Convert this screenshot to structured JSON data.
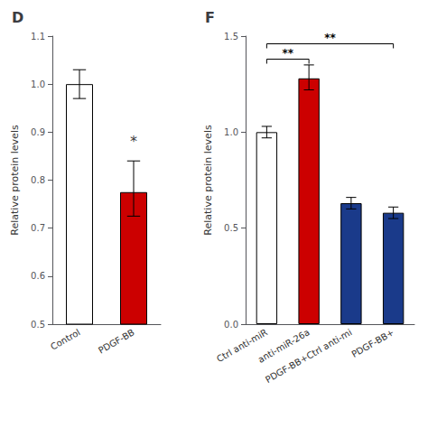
{
  "chart_data": [
    {
      "type": "bar",
      "title": "D",
      "categories": [
        "Control",
        "PDGF-BB"
      ],
      "values": [
        1.0,
        0.775
      ],
      "errors_low": [
        0.03,
        0.05
      ],
      "errors_high": [
        0.03,
        0.065
      ],
      "colors": [
        "white",
        "#cc0000"
      ],
      "ylabel": "Relative protein levels",
      "ylim": [
        0.5,
        1.1
      ],
      "yticks": [
        0.5,
        0.6,
        0.7,
        0.8,
        0.9,
        {
          "value": 1.0,
          "label": "1.0"
        },
        1.1
      ],
      "grid": false,
      "annotations": [
        {
          "text": "*",
          "x": "PDGF-BB",
          "y": 0.865
        }
      ]
    },
    {
      "type": "bar",
      "title": "F",
      "categories": [
        "Ctrl anti-miR",
        "anti-miR-26a",
        "PDGF-BB+Ctrl anti-mi",
        "PDGF-BB+"
      ],
      "values": [
        1.0,
        1.28,
        0.63,
        0.58
      ],
      "errors_low": [
        0.03,
        0.06,
        0.03,
        0.03
      ],
      "errors_high": [
        0.03,
        0.07,
        0.03,
        0.03
      ],
      "colors": [
        "white",
        "#cc0000",
        "#1a3a8a",
        "#1a3a8a"
      ],
      "ylabel": "Relative protein levels",
      "ylim": [
        0.0,
        1.5
      ],
      "yticks": [
        {
          "value": 0.0,
          "label": "0.0"
        },
        0.5,
        {
          "value": 1.0,
          "label": "1.0"
        },
        1.5
      ],
      "grid": false,
      "annotations": [
        {
          "text": "**",
          "x1": "Ctrl anti-miR",
          "x2": "anti-miR-26a",
          "y": 1.38
        },
        {
          "text": "**",
          "x1": "Ctrl anti-miR",
          "x2": "PDGF-BB+",
          "y": 1.46
        }
      ]
    }
  ]
}
